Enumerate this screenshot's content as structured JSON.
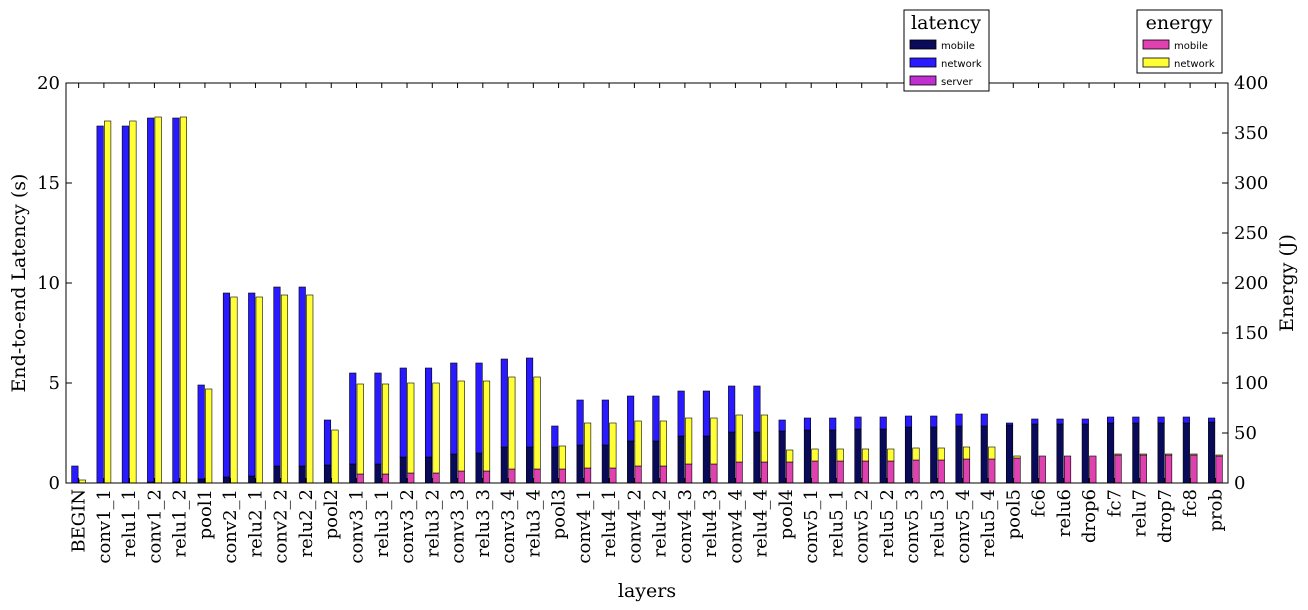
{
  "chart_data": {
    "type": "bar",
    "xlabel": "layers",
    "ylabel_left": "End-to-end Latency (s)",
    "ylabel_right": "Energy (J)",
    "ylim_left": [
      0,
      20
    ],
    "ylim_right": [
      0,
      400
    ],
    "yticks_left": [
      "0",
      "5",
      "10",
      "15",
      "20"
    ],
    "yticks_right": [
      "0",
      "50",
      "100",
      "150",
      "200",
      "250",
      "300",
      "350",
      "400"
    ],
    "grid": false,
    "categories": [
      "BEGIN",
      "conv1_1",
      "relu1_1",
      "conv1_2",
      "relu1_2",
      "pool1",
      "conv2_1",
      "relu2_1",
      "conv2_2",
      "relu2_2",
      "pool2",
      "conv3_1",
      "relu3_1",
      "conv3_2",
      "relu3_2",
      "conv3_3",
      "relu3_3",
      "conv3_4",
      "relu3_4",
      "pool3",
      "conv4_1",
      "relu4_1",
      "conv4_2",
      "relu4_2",
      "conv4_3",
      "relu4_3",
      "conv4_4",
      "relu4_4",
      "pool4",
      "conv5_1",
      "relu5_1",
      "conv5_2",
      "relu5_2",
      "conv5_3",
      "relu5_3",
      "conv5_4",
      "relu5_4",
      "pool5",
      "fc6",
      "relu6",
      "drop6",
      "fc7",
      "relu7",
      "drop7",
      "fc8",
      "prob"
    ],
    "legends": [
      {
        "title": "latency",
        "placement": "top-right",
        "entries": [
          "mobile",
          "network",
          "server"
        ],
        "colors": [
          "#0a0a5a",
          "#2a1aff",
          "#c030d0"
        ]
      },
      {
        "title": "energy",
        "placement": "top-right",
        "entries": [
          "mobile",
          "network"
        ],
        "colors": [
          "#e040b0",
          "#ffff33"
        ]
      }
    ],
    "latency_series": [
      {
        "name": "mobile",
        "axis": "left",
        "values": [
          0,
          0,
          0,
          0.05,
          0.05,
          0.2,
          0.3,
          0.35,
          0.85,
          0.85,
          0.9,
          0.95,
          0.95,
          1.3,
          1.3,
          1.45,
          1.5,
          1.8,
          1.8,
          1.8,
          1.9,
          1.9,
          2.1,
          2.1,
          2.35,
          2.35,
          2.55,
          2.55,
          2.6,
          2.65,
          2.65,
          2.7,
          2.7,
          2.8,
          2.8,
          2.85,
          2.85,
          2.9,
          2.95,
          2.95,
          2.95,
          3.0,
          3.0,
          3.0,
          3.0,
          3.05
        ]
      },
      {
        "name": "network",
        "axis": "left",
        "values": [
          0.85,
          17.85,
          17.85,
          18.2,
          18.2,
          4.7,
          9.2,
          9.15,
          8.95,
          8.95,
          2.25,
          4.55,
          4.55,
          4.45,
          4.45,
          4.55,
          4.5,
          4.4,
          4.45,
          1.05,
          2.25,
          2.25,
          2.25,
          2.25,
          2.25,
          2.25,
          2.3,
          2.3,
          0.55,
          0.6,
          0.6,
          0.6,
          0.6,
          0.55,
          0.55,
          0.6,
          0.6,
          0.1,
          0.25,
          0.25,
          0.25,
          0.3,
          0.3,
          0.3,
          0.3,
          0.2
        ]
      },
      {
        "name": "server",
        "axis": "left",
        "values": [
          0,
          0,
          0,
          0,
          0,
          0,
          0,
          0,
          0,
          0,
          0,
          0,
          0,
          0,
          0,
          0,
          0,
          0,
          0,
          0,
          0,
          0,
          0,
          0,
          0,
          0,
          0,
          0,
          0,
          0,
          0,
          0,
          0,
          0,
          0,
          0,
          0,
          0,
          0,
          0,
          0,
          0,
          0,
          0,
          0,
          0
        ]
      }
    ],
    "energy_series": [
      {
        "name": "mobile",
        "axis": "right",
        "values": [
          0,
          0,
          0,
          0,
          0,
          0,
          0,
          0,
          0,
          0,
          0,
          9,
          9,
          10,
          10,
          12,
          12,
          14,
          14,
          14,
          15,
          15,
          17,
          17,
          19,
          19,
          21,
          21,
          21,
          22,
          22,
          22,
          22,
          23,
          23,
          24,
          24,
          25,
          27,
          27,
          27,
          28,
          28,
          28,
          28,
          27
        ]
      },
      {
        "name": "network",
        "axis": "right",
        "values": [
          3,
          362,
          362,
          366,
          366,
          94,
          186,
          186,
          188,
          188,
          53,
          90,
          90,
          90,
          90,
          90,
          90,
          92,
          92,
          23,
          45,
          45,
          45,
          45,
          46,
          46,
          47,
          47,
          12,
          12,
          12,
          12,
          12,
          12,
          12,
          12,
          12,
          2,
          0,
          0,
          0,
          1,
          1,
          1,
          1,
          1
        ]
      }
    ]
  }
}
